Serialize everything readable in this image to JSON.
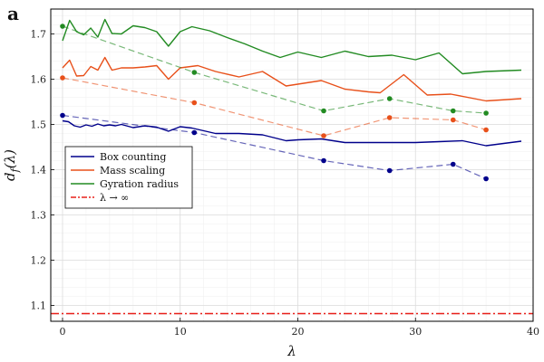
{
  "chart_data": {
    "type": "line",
    "panel_label": "a",
    "xlabel": "λ",
    "ylabel": "d_f(λ)",
    "xlim": [
      -1,
      40
    ],
    "ylim": [
      1.065,
      1.755
    ],
    "xticks": [
      0,
      10,
      20,
      30,
      40
    ],
    "yticks": [
      1.1,
      1.2,
      1.3,
      1.4,
      1.5,
      1.6,
      1.7
    ],
    "grid": true,
    "legend_position": "middle-left",
    "series": [
      {
        "name": "Box counting",
        "style": "solid",
        "color": "#00008b",
        "x": [
          0,
          0.5,
          1,
          1.5,
          2,
          2.5,
          3,
          3.5,
          4,
          4.5,
          5,
          6,
          7,
          8,
          9,
          10,
          11,
          13,
          15,
          17,
          19,
          20,
          22,
          24,
          26,
          28,
          30,
          32,
          34,
          36,
          39
        ],
        "y": [
          1.508,
          1.506,
          1.497,
          1.494,
          1.499,
          1.496,
          1.501,
          1.497,
          1.499,
          1.497,
          1.5,
          1.493,
          1.497,
          1.494,
          1.485,
          1.495,
          1.492,
          1.48,
          1.48,
          1.477,
          1.464,
          1.466,
          1.468,
          1.46,
          1.46,
          1.46,
          1.46,
          1.462,
          1.464,
          1.453,
          1.463
        ]
      },
      {
        "name": "Mass scaling",
        "style": "solid",
        "color": "#e8501a",
        "x": [
          0,
          0.6,
          1.2,
          1.8,
          2.4,
          3,
          3.6,
          4.2,
          5,
          6,
          7,
          8,
          9,
          10,
          11.5,
          13,
          15,
          17,
          19,
          22,
          24,
          26,
          27,
          29,
          31,
          33,
          36,
          39
        ],
        "y": [
          1.625,
          1.642,
          1.607,
          1.608,
          1.628,
          1.62,
          1.648,
          1.62,
          1.625,
          1.625,
          1.627,
          1.63,
          1.6,
          1.625,
          1.63,
          1.617,
          1.605,
          1.617,
          1.585,
          1.597,
          1.578,
          1.572,
          1.57,
          1.61,
          1.565,
          1.567,
          1.552,
          1.557
        ]
      },
      {
        "name": "Gyration radius",
        "style": "solid",
        "color": "#228b22",
        "x": [
          0,
          0.6,
          1.2,
          1.8,
          2.4,
          3,
          3.6,
          4.2,
          5,
          6,
          7,
          8,
          9,
          10,
          11,
          12.5,
          14,
          15.5,
          17,
          18.5,
          20,
          22,
          24,
          26,
          28,
          30,
          32,
          34,
          36,
          39
        ],
        "y": [
          1.685,
          1.73,
          1.705,
          1.698,
          1.713,
          1.693,
          1.732,
          1.701,
          1.7,
          1.718,
          1.714,
          1.705,
          1.673,
          1.705,
          1.716,
          1.707,
          1.692,
          1.678,
          1.662,
          1.648,
          1.66,
          1.648,
          1.662,
          1.65,
          1.653,
          1.643,
          1.658,
          1.612,
          1.617,
          1.62
        ]
      },
      {
        "name": "Box counting (sampled)",
        "style": "dashed-markers",
        "color": "#00008b",
        "x": [
          0,
          11.2,
          22.2,
          27.8,
          33.2,
          36
        ],
        "y": [
          1.52,
          1.482,
          1.42,
          1.398,
          1.412,
          1.38
        ]
      },
      {
        "name": "Mass scaling (sampled)",
        "style": "dashed-markers",
        "color": "#e8501a",
        "x": [
          0,
          11.2,
          22.2,
          27.8,
          33.2,
          36
        ],
        "y": [
          1.603,
          1.548,
          1.475,
          1.515,
          1.51,
          1.488
        ]
      },
      {
        "name": "Gyration radius (sampled)",
        "style": "dashed-markers",
        "color": "#228b22",
        "x": [
          0,
          11.2,
          22.2,
          27.8,
          33.2,
          36
        ],
        "y": [
          1.717,
          1.615,
          1.53,
          1.557,
          1.53,
          1.525
        ]
      },
      {
        "name": "λ → ∞",
        "style": "dash-dot",
        "color": "#e8201a",
        "x": [
          -1,
          40
        ],
        "y": [
          1.082,
          1.082
        ]
      }
    ],
    "legend": [
      {
        "label": "Box counting",
        "color": "#00008b",
        "style": "solid"
      },
      {
        "label": "Mass scaling",
        "color": "#e8501a",
        "style": "solid"
      },
      {
        "label": "Gyration radius",
        "color": "#228b22",
        "style": "solid"
      },
      {
        "label": "λ → ∞",
        "color": "#e8201a",
        "style": "dash-dot"
      }
    ]
  }
}
